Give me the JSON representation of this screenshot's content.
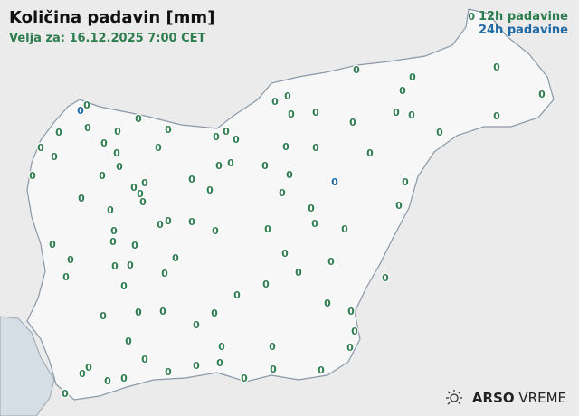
{
  "header": {
    "title": "Količina padavin [mm]",
    "valid_for": "Velja za: 16.12.2025 7:00 CET"
  },
  "legend": {
    "sample_value": "0",
    "label_12h": "12h padavine",
    "label_24h": "24h padavine",
    "color_12h": "#2e7d4f",
    "color_24h": "#1f6aa5"
  },
  "logo": {
    "brand": "ARSO",
    "product": "VREME",
    "icon": "sun-icon"
  },
  "stations": {
    "values_12h_count_note": "",
    "value_12h": "0",
    "value_24h": "0"
  }
}
